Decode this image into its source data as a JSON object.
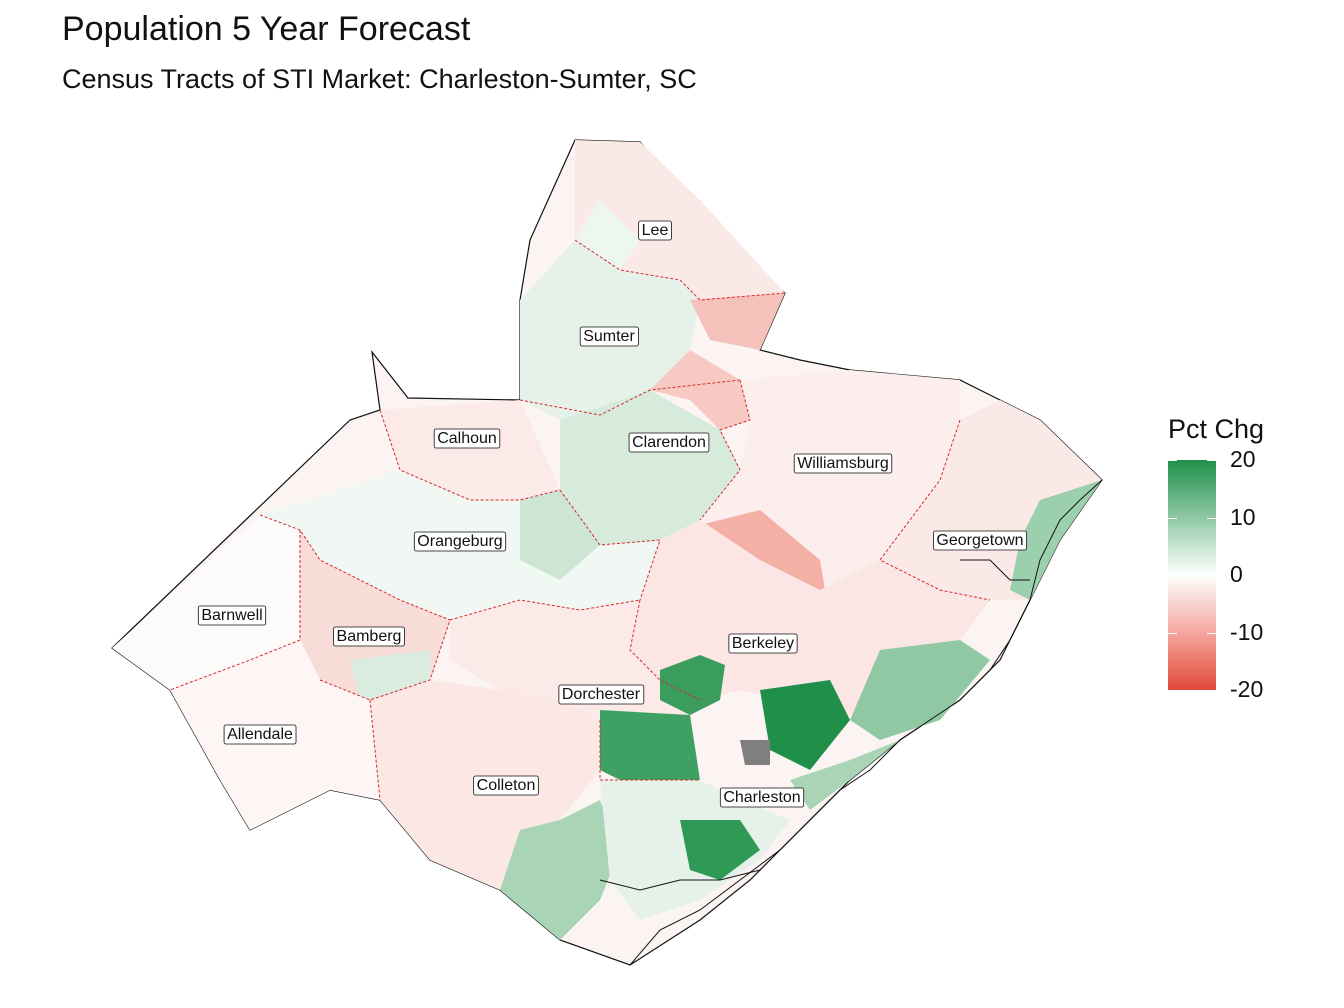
{
  "title": "Population 5 Year Forecast",
  "subtitle": "Census Tracts of STI Market: Charleston-Sumter, SC",
  "legend": {
    "title": "Pct Chg",
    "breaks": [
      20,
      10,
      0,
      -10,
      -20
    ],
    "break_labels": [
      "20",
      "10",
      "0",
      "-10",
      "-20"
    ],
    "high_color": "#1f8f4a",
    "mid_color": "#ffffff",
    "low_color": "#e04a38",
    "missing_color": "#7f7f7f"
  },
  "counties": [
    {
      "name": "Lee",
      "pct_chg": 1
    },
    {
      "name": "Sumter",
      "pct_chg": 2
    },
    {
      "name": "Calhoun",
      "pct_chg": -2
    },
    {
      "name": "Clarendon",
      "pct_chg": 4
    },
    {
      "name": "Williamsburg",
      "pct_chg": -4
    },
    {
      "name": "Orangeburg",
      "pct_chg": -1
    },
    {
      "name": "Georgetown",
      "pct_chg": -3
    },
    {
      "name": "Barnwell",
      "pct_chg": 0
    },
    {
      "name": "Bamberg",
      "pct_chg": -2
    },
    {
      "name": "Berkeley",
      "pct_chg": -5
    },
    {
      "name": "Dorchester",
      "pct_chg": 6
    },
    {
      "name": "Allendale",
      "pct_chg": -2
    },
    {
      "name": "Colleton",
      "pct_chg": -2
    },
    {
      "name": "Charleston",
      "pct_chg": 9
    }
  ]
}
